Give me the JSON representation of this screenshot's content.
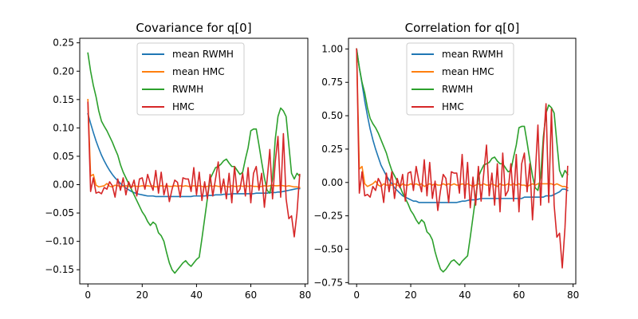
{
  "chart_data": [
    {
      "type": "line",
      "title": "Covariance for q[0]",
      "xlabel": "",
      "ylabel": "",
      "xlim": [
        -3,
        81
      ],
      "ylim": [
        -0.175,
        0.258
      ],
      "xticks": [
        0,
        20,
        40,
        60,
        80
      ],
      "xtick_labels": [
        "0",
        "20",
        "40",
        "60",
        "80"
      ],
      "yticks": [
        -0.15,
        -0.1,
        -0.05,
        0.0,
        0.05,
        0.1,
        0.15,
        0.2,
        0.25
      ],
      "ytick_labels": [
        "−0.15",
        "−0.10",
        "−0.05",
        "0.00",
        "0.05",
        "0.10",
        "0.15",
        "0.20",
        "0.25"
      ],
      "legend_position": "top-center",
      "grid": false,
      "x": [
        0,
        1,
        2,
        3,
        4,
        5,
        6,
        7,
        8,
        9,
        10,
        11,
        12,
        13,
        14,
        15,
        16,
        17,
        18,
        19,
        20,
        21,
        22,
        23,
        24,
        25,
        26,
        27,
        28,
        29,
        30,
        31,
        32,
        33,
        34,
        35,
        36,
        37,
        38,
        39,
        40,
        41,
        42,
        43,
        44,
        45,
        46,
        47,
        48,
        49,
        50,
        51,
        52,
        53,
        54,
        55,
        56,
        57,
        58,
        59,
        60,
        61,
        62,
        63,
        64,
        65,
        66,
        67,
        68,
        69,
        70,
        71,
        72,
        73,
        74,
        75,
        76,
        77,
        78
      ],
      "series": [
        {
          "name": "mean RWMH",
          "color": "#1f77b4",
          "values": [
            0.125,
            0.108,
            0.092,
            0.077,
            0.064,
            0.052,
            0.042,
            0.033,
            0.025,
            0.018,
            0.012,
            0.007,
            0.002,
            -0.002,
            -0.006,
            -0.009,
            -0.012,
            -0.014,
            -0.016,
            -0.017,
            -0.018,
            -0.019,
            -0.02,
            -0.02,
            -0.02,
            -0.021,
            -0.021,
            -0.021,
            -0.021,
            -0.021,
            -0.021,
            -0.021,
            -0.021,
            -0.021,
            -0.021,
            -0.021,
            -0.021,
            -0.021,
            -0.021,
            -0.02,
            -0.02,
            -0.02,
            -0.02,
            -0.02,
            -0.019,
            -0.019,
            -0.019,
            -0.018,
            -0.018,
            -0.018,
            -0.017,
            -0.017,
            -0.017,
            -0.016,
            -0.016,
            -0.016,
            -0.016,
            -0.016,
            -0.016,
            -0.016,
            -0.016,
            -0.016,
            -0.015,
            -0.015,
            -0.015,
            -0.015,
            -0.015,
            -0.014,
            -0.014,
            -0.014,
            -0.013,
            -0.013,
            -0.012,
            -0.011,
            -0.01,
            -0.009,
            -0.008,
            -0.007,
            -0.007
          ]
        },
        {
          "name": "mean HMC",
          "color": "#ff7f0e",
          "values": [
            0.15,
            0.015,
            0.018,
            -0.001,
            -0.004,
            -0.003,
            -0.002,
            0.002,
            -0.003,
            -0.004,
            -0.001,
            -0.002,
            -0.003,
            -0.003,
            -0.002,
            -0.003,
            -0.004,
            -0.002,
            -0.003,
            -0.003,
            -0.002,
            -0.003,
            -0.002,
            -0.003,
            -0.002,
            -0.004,
            -0.003,
            -0.002,
            -0.003,
            -0.002,
            -0.003,
            -0.003,
            -0.002,
            -0.003,
            -0.002,
            -0.003,
            -0.002,
            -0.003,
            -0.003,
            -0.002,
            -0.003,
            -0.002,
            -0.003,
            -0.004,
            -0.003,
            -0.002,
            -0.003,
            -0.002,
            -0.003,
            -0.003,
            -0.002,
            -0.003,
            -0.004,
            -0.002,
            -0.003,
            -0.003,
            -0.002,
            -0.003,
            -0.002,
            -0.003,
            -0.002,
            -0.003,
            -0.003,
            -0.004,
            -0.003,
            -0.002,
            -0.003,
            -0.002,
            -0.001,
            -0.002,
            -0.002,
            -0.001,
            -0.002,
            -0.003,
            -0.002,
            -0.003,
            -0.004,
            -0.004,
            -0.005
          ]
        },
        {
          "name": "RWMH",
          "color": "#2ca02c",
          "values": [
            0.232,
            0.2,
            0.175,
            0.155,
            0.13,
            0.112,
            0.103,
            0.095,
            0.085,
            0.075,
            0.063,
            0.052,
            0.035,
            0.022,
            0.012,
            0.002,
            -0.008,
            -0.018,
            -0.028,
            -0.038,
            -0.048,
            -0.055,
            -0.065,
            -0.072,
            -0.066,
            -0.07,
            -0.085,
            -0.09,
            -0.1,
            -0.12,
            -0.138,
            -0.15,
            -0.156,
            -0.15,
            -0.144,
            -0.138,
            -0.134,
            -0.14,
            -0.144,
            -0.138,
            -0.132,
            -0.128,
            -0.095,
            -0.06,
            -0.025,
            0.01,
            0.02,
            0.03,
            0.032,
            0.036,
            0.042,
            0.045,
            0.038,
            0.032,
            0.032,
            0.025,
            0.018,
            0.022,
            0.045,
            0.065,
            0.095,
            0.098,
            0.098,
            0.07,
            0.04,
            0.012,
            -0.01,
            -0.015,
            0.01,
            0.08,
            0.12,
            0.135,
            0.13,
            0.12,
            0.07,
            0.02,
            0.01,
            0.02,
            0.015
          ]
        },
        {
          "name": "HMC",
          "color": "#d62728",
          "values": [
            0.145,
            -0.012,
            0.012,
            -0.015,
            -0.013,
            -0.016,
            -0.005,
            -0.008,
            0.005,
            -0.002,
            -0.022,
            0.01,
            -0.01,
            0.012,
            -0.018,
            0.005,
            -0.006,
            0.008,
            -0.02,
            0.01,
            0.012,
            -0.008,
            0.018,
            0.002,
            -0.01,
            0.025,
            -0.015,
            0.022,
            -0.018,
            0.002,
            -0.03,
            -0.008,
            0.008,
            0.004,
            -0.022,
            0.012,
            0.01,
            0.01,
            -0.012,
            0.03,
            -0.018,
            0.022,
            -0.028,
            0.005,
            -0.025,
            0.018,
            -0.02,
            0.01,
            0.04,
            -0.015,
            0.01,
            -0.025,
            0.02,
            -0.032,
            0.032,
            -0.015,
            -0.008,
            0.02,
            -0.02,
            0.03,
            -0.032,
            0.02,
            0.032,
            -0.01,
            0.02,
            -0.04,
            0.008,
            0.062,
            -0.025,
            0.04,
            0.085,
            -0.022,
            0.09,
            -0.025,
            -0.06,
            -0.055,
            -0.092,
            -0.05,
            0.018
          ]
        }
      ]
    },
    {
      "type": "line",
      "title": "Correlation for q[0]",
      "xlabel": "",
      "ylabel": "",
      "xlim": [
        -3,
        81
      ],
      "ylim": [
        -0.76,
        1.08
      ],
      "xticks": [
        0,
        20,
        40,
        60,
        80
      ],
      "xtick_labels": [
        "0",
        "20",
        "40",
        "60",
        "80"
      ],
      "yticks": [
        -0.75,
        -0.5,
        -0.25,
        0.0,
        0.25,
        0.5,
        0.75,
        1.0
      ],
      "ytick_labels": [
        "−0.75",
        "−0.50",
        "−0.25",
        "0.00",
        "0.25",
        "0.50",
        "0.75",
        "1.00"
      ],
      "legend_position": "top-center",
      "grid": false,
      "x": [
        0,
        1,
        2,
        3,
        4,
        5,
        6,
        7,
        8,
        9,
        10,
        11,
        12,
        13,
        14,
        15,
        16,
        17,
        18,
        19,
        20,
        21,
        22,
        23,
        24,
        25,
        26,
        27,
        28,
        29,
        30,
        31,
        32,
        33,
        34,
        35,
        36,
        37,
        38,
        39,
        40,
        41,
        42,
        43,
        44,
        45,
        46,
        47,
        48,
        49,
        50,
        51,
        52,
        53,
        54,
        55,
        56,
        57,
        58,
        59,
        60,
        61,
        62,
        63,
        64,
        65,
        66,
        67,
        68,
        69,
        70,
        71,
        72,
        73,
        74,
        75,
        76,
        77,
        78
      ],
      "series": [
        {
          "name": "mean RWMH",
          "color": "#1f77b4",
          "values": [
            1.0,
            0.86,
            0.74,
            0.61,
            0.5,
            0.4,
            0.32,
            0.25,
            0.19,
            0.13,
            0.09,
            0.05,
            0.02,
            -0.01,
            -0.04,
            -0.06,
            -0.08,
            -0.1,
            -0.11,
            -0.12,
            -0.13,
            -0.14,
            -0.14,
            -0.15,
            -0.15,
            -0.15,
            -0.15,
            -0.15,
            -0.15,
            -0.15,
            -0.15,
            -0.15,
            -0.15,
            -0.15,
            -0.15,
            -0.15,
            -0.15,
            -0.15,
            -0.145,
            -0.14,
            -0.14,
            -0.135,
            -0.13,
            -0.13,
            -0.13,
            -0.125,
            -0.12,
            -0.12,
            -0.12,
            -0.12,
            -0.12,
            -0.12,
            -0.12,
            -0.12,
            -0.12,
            -0.12,
            -0.12,
            -0.12,
            -0.12,
            -0.12,
            -0.12,
            -0.12,
            -0.11,
            -0.11,
            -0.11,
            -0.11,
            -0.11,
            -0.11,
            -0.11,
            -0.11,
            -0.1,
            -0.1,
            -0.1,
            -0.09,
            -0.08,
            -0.07,
            -0.05,
            -0.05,
            -0.06
          ]
        },
        {
          "name": "mean HMC",
          "color": "#ff7f0e",
          "values": [
            1.0,
            0.1,
            0.12,
            -0.01,
            -0.03,
            -0.02,
            -0.01,
            0.01,
            -0.02,
            -0.03,
            -0.01,
            -0.02,
            -0.02,
            -0.02,
            -0.01,
            -0.02,
            -0.03,
            -0.01,
            -0.02,
            -0.02,
            -0.01,
            -0.02,
            -0.01,
            -0.02,
            -0.01,
            -0.03,
            -0.02,
            -0.01,
            -0.02,
            -0.01,
            -0.02,
            -0.02,
            -0.01,
            -0.02,
            -0.01,
            -0.02,
            -0.01,
            -0.02,
            -0.02,
            -0.01,
            -0.02,
            -0.01,
            -0.02,
            -0.03,
            -0.02,
            -0.01,
            -0.02,
            -0.01,
            -0.02,
            -0.02,
            -0.01,
            -0.02,
            -0.03,
            -0.01,
            -0.02,
            -0.02,
            -0.01,
            -0.02,
            -0.01,
            -0.02,
            -0.01,
            -0.02,
            -0.02,
            -0.03,
            -0.02,
            -0.01,
            -0.02,
            -0.01,
            -0.01,
            -0.01,
            -0.01,
            -0.01,
            -0.01,
            -0.02,
            -0.01,
            -0.02,
            -0.03,
            -0.03,
            -0.04
          ]
        },
        {
          "name": "RWMH",
          "color": "#2ca02c",
          "values": [
            1.0,
            0.86,
            0.75,
            0.67,
            0.56,
            0.48,
            0.44,
            0.41,
            0.37,
            0.32,
            0.27,
            0.22,
            0.15,
            0.09,
            0.05,
            0.01,
            -0.03,
            -0.08,
            -0.12,
            -0.16,
            -0.21,
            -0.24,
            -0.28,
            -0.31,
            -0.28,
            -0.3,
            -0.37,
            -0.39,
            -0.43,
            -0.52,
            -0.59,
            -0.65,
            -0.67,
            -0.65,
            -0.62,
            -0.59,
            -0.58,
            -0.6,
            -0.62,
            -0.59,
            -0.57,
            -0.55,
            -0.41,
            -0.26,
            -0.11,
            0.04,
            0.09,
            0.13,
            0.14,
            0.15,
            0.18,
            0.19,
            0.16,
            0.14,
            0.14,
            0.11,
            0.08,
            0.09,
            0.19,
            0.28,
            0.41,
            0.42,
            0.42,
            0.3,
            0.17,
            0.05,
            -0.04,
            -0.06,
            0.04,
            0.34,
            0.52,
            0.58,
            0.56,
            0.52,
            0.3,
            0.09,
            0.04,
            0.09,
            0.06
          ]
        },
        {
          "name": "HMC",
          "color": "#d62728",
          "values": [
            1.0,
            -0.08,
            0.08,
            -0.1,
            -0.09,
            -0.11,
            -0.03,
            -0.06,
            0.03,
            -0.01,
            -0.15,
            0.07,
            -0.07,
            0.08,
            -0.12,
            0.03,
            -0.04,
            0.06,
            -0.14,
            0.07,
            0.08,
            -0.06,
            0.12,
            0.01,
            -0.07,
            0.17,
            -0.1,
            0.15,
            -0.12,
            0.01,
            -0.21,
            -0.06,
            0.06,
            0.03,
            -0.15,
            0.08,
            0.07,
            0.07,
            -0.08,
            0.21,
            -0.12,
            0.15,
            -0.19,
            0.04,
            -0.17,
            0.12,
            -0.14,
            0.07,
            0.28,
            -0.1,
            0.07,
            -0.17,
            0.14,
            -0.22,
            0.22,
            -0.1,
            -0.06,
            0.14,
            -0.14,
            0.21,
            -0.22,
            0.14,
            0.22,
            -0.07,
            0.14,
            -0.28,
            0.05,
            0.43,
            -0.17,
            0.28,
            0.59,
            -0.15,
            0.55,
            -0.17,
            -0.41,
            -0.38,
            -0.64,
            -0.34,
            0.12
          ]
        }
      ]
    }
  ]
}
